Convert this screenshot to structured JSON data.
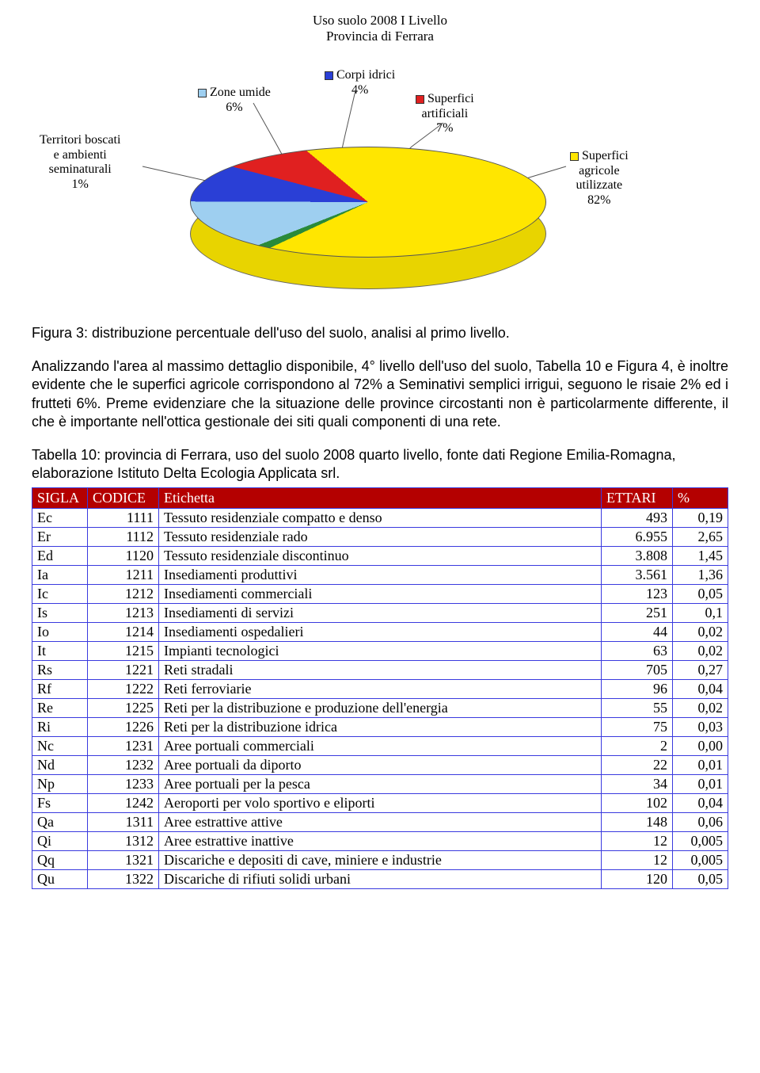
{
  "chart": {
    "title": "Uso suolo 2008 I Livello\nProvincia di Ferrara",
    "title_fontsize": 17,
    "background_color": "#ffffff",
    "slices": [
      {
        "label": "Territori boscati\ne ambienti\nseminaturali\n1%",
        "color": "#2a8a3a",
        "value": 1
      },
      {
        "label": "Zone umide\n6%",
        "color": "#9ecff0",
        "value": 6
      },
      {
        "label": "Corpi idrici\n4%",
        "color": "#2a3fd6",
        "value": 4
      },
      {
        "label": "Superfici\nartificiali\n7%",
        "color": "#e02020",
        "value": 7
      },
      {
        "label": "Superfici\nagricole\nutilizzate\n82%",
        "color": "#ffe600",
        "value": 82
      }
    ],
    "side_color": "#e8d400",
    "label_fontsize": 16,
    "legend_square_size": 11
  },
  "figure_caption": "Figura 3: distribuzione percentuale dell'uso del suolo, analisi al primo livello.",
  "body_paragraph": "Analizzando l'area al massimo dettaglio disponibile, 4° livello dell'uso del suolo, Tabella 10 e Figura 4, è inoltre evidente che le superfici agricole corrispondono al 72% a Seminativi semplici irrigui, seguono le risaie 2% ed i frutteti 6%. Preme evidenziare che la situazione delle province circostanti non è particolarmente differente, il che è importante nell'ottica gestionale dei siti quali componenti di una rete.",
  "table_caption": "Tabella 10: provincia di Ferrara, uso del suolo 2008 quarto livello, fonte dati Regione Emilia-Romagna, elaborazione Istituto Delta Ecologia Applicata srl.",
  "table": {
    "header_bg": "#b40000",
    "header_fg": "#ffffff",
    "border_color": "#3a3adf",
    "columns": [
      "SIGLA",
      "CODICE",
      "Etichetta",
      "ETTARI",
      "%"
    ],
    "col_align": [
      "left",
      "right",
      "left",
      "right",
      "right"
    ],
    "col_widths": [
      "70px",
      "90px",
      "auto",
      "90px",
      "70px"
    ],
    "rows": [
      [
        "Ec",
        "1111",
        "Tessuto residenziale compatto e denso",
        "493",
        "0,19"
      ],
      [
        "Er",
        "1112",
        "Tessuto residenziale  rado",
        "6.955",
        "2,65"
      ],
      [
        "Ed",
        "1120",
        "Tessuto residenziale discontinuo",
        "3.808",
        "1,45"
      ],
      [
        "Ia",
        "1211",
        " Insediamenti produttivi",
        "3.561",
        "1,36"
      ],
      [
        "Ic",
        "1212",
        " Insediamenti commerciali",
        "123",
        "0,05"
      ],
      [
        "Is",
        "1213",
        "Insediamenti di servizi",
        "251",
        "0,1"
      ],
      [
        "Io",
        "1214",
        " Insediamenti ospedalieri",
        "44",
        "0,02"
      ],
      [
        "It",
        "1215",
        " Impianti tecnologici",
        "63",
        "0,02"
      ],
      [
        "Rs",
        "1221",
        "Reti stradali",
        "705",
        "0,27"
      ],
      [
        "Rf",
        "1222",
        "Reti ferroviarie",
        "96",
        "0,04"
      ],
      [
        "Re",
        "1225",
        "Reti per la distribuzione e produzione dell'energia",
        "55",
        "0,02"
      ],
      [
        "Ri",
        "1226",
        "Reti per la distribuzione idrica",
        "75",
        "0,03"
      ],
      [
        "Nc",
        "1231",
        "Aree portuali commerciali",
        "2",
        "0,00"
      ],
      [
        "Nd",
        "1232",
        " Aree portuali da diporto",
        "22",
        "0,01"
      ],
      [
        "Np",
        "1233",
        " Aree portuali per la pesca",
        "34",
        "0,01"
      ],
      [
        "Fs",
        "1242",
        "Aeroporti per volo sportivo e eliporti",
        "102",
        "0,04"
      ],
      [
        "Qa",
        "1311",
        "Aree estrattive attive",
        "148",
        "0,06"
      ],
      [
        "Qi",
        "1312",
        "Aree estrattive inattive",
        "12",
        "0,005"
      ],
      [
        "Qq",
        "1321",
        "Discariche e depositi di cave, miniere e industrie",
        "12",
        "0,005"
      ],
      [
        "Qu",
        "1322",
        "Discariche di rifiuti solidi urbani",
        "120",
        "0,05"
      ]
    ]
  }
}
